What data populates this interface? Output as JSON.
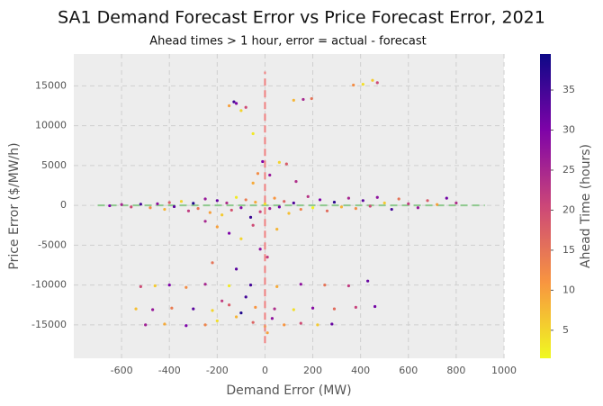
{
  "chart_data": {
    "type": "scatter",
    "title": "SA1 Demand Forecast Error vs Price Forecast Error, 2021",
    "subtitle": "Ahead times > 1 hour, error = actual - forecast",
    "x_label": "Demand Error (MW)",
    "y_label": "Price Error ($/MW/h)",
    "colorbar_label": "Ahead Time (hours)",
    "xlim": [
      -800,
      1000
    ],
    "xticks": [
      -600,
      -400,
      -200,
      0,
      200,
      400,
      600,
      800,
      1000
    ],
    "ylim": [
      -19200,
      19000
    ],
    "yticks": [
      -15000,
      -10000,
      -5000,
      0,
      5000,
      10000,
      15000
    ],
    "clim": [
      1.5,
      39.5
    ],
    "cticks": [
      5,
      10,
      15,
      20,
      25,
      30,
      35
    ],
    "colormap": [
      "#f0f921",
      "#f89540",
      "#cc4778",
      "#7e03a8",
      "#0d0887"
    ],
    "grid": true,
    "vline": {
      "x": 0,
      "y": [
        -17300,
        16800
      ],
      "color": "#f08080"
    },
    "hline": {
      "y": 0,
      "x": [
        -700,
        920
      ],
      "color": "#8fc98f"
    },
    "x": [
      -650,
      -600,
      -560,
      -520,
      -480,
      -450,
      -420,
      -400,
      -380,
      -350,
      -320,
      -300,
      -280,
      -250,
      -230,
      -200,
      -180,
      -160,
      -140,
      -120,
      -100,
      -80,
      -60,
      -40,
      -20,
      0,
      20,
      40,
      60,
      80,
      100,
      120,
      150,
      180,
      200,
      230,
      260,
      290,
      320,
      350,
      380,
      410,
      440,
      470,
      500,
      530,
      560,
      600,
      640,
      680,
      720,
      760,
      800,
      -250,
      -200,
      -150,
      -100,
      -50,
      -20,
      -220,
      -120,
      50,
      10,
      -30,
      20,
      60,
      90,
      -10,
      -50,
      130,
      -150,
      -120,
      -100,
      -80,
      -130,
      120,
      160,
      195,
      370,
      410,
      450,
      470,
      -50,
      -520,
      -460,
      -400,
      -330,
      -250,
      -150,
      -60,
      50,
      150,
      250,
      350,
      430,
      -540,
      -470,
      -390,
      -300,
      -220,
      -150,
      -100,
      -40,
      40,
      120,
      200,
      290,
      380,
      460,
      -500,
      -420,
      -330,
      -250,
      -200,
      -180,
      -120,
      -80,
      -50,
      0,
      30,
      80,
      150,
      220,
      280,
      10
    ],
    "values": [
      -50,
      100,
      -200,
      150,
      -300,
      200,
      -500,
      350,
      -150,
      500,
      -700,
      250,
      -400,
      800,
      -900,
      600,
      -1200,
      300,
      -600,
      1000,
      -300,
      700,
      -1500,
      400,
      -800,
      200,
      -400,
      900,
      -200,
      500,
      -1000,
      300,
      -500,
      1100,
      -300,
      700,
      -700,
      400,
      -200,
      900,
      -400,
      600,
      -100,
      1000,
      300,
      -500,
      800,
      200,
      -300,
      600,
      100,
      900,
      300,
      -2000,
      -2700,
      -3500,
      -4200,
      -2500,
      -5500,
      -7200,
      -8000,
      -3000,
      -6500,
      4000,
      3800,
      5400,
      5200,
      5500,
      2800,
      3000,
      12500,
      12800,
      11900,
      12300,
      13000,
      13200,
      13300,
      13400,
      15100,
      15200,
      15700,
      15400,
      9000,
      -10200,
      -10100,
      -10000,
      -10300,
      -9900,
      -10100,
      -10000,
      -10200,
      -9900,
      -10000,
      -10100,
      -9500,
      -13000,
      -13100,
      -12900,
      -13000,
      -13200,
      -12500,
      -13500,
      -12800,
      -13000,
      -13100,
      -12900,
      -13000,
      -12800,
      -12700,
      -15000,
      -14900,
      -15100,
      -15000,
      -14500,
      -12000,
      -14000,
      -11500,
      -14700,
      -15200,
      -14200,
      -15000,
      -14800,
      -15000,
      -14900,
      -16000
    ],
    "ahead_time": [
      30,
      25,
      20,
      35,
      12,
      28,
      8,
      18,
      33,
      5,
      22,
      38,
      15,
      27,
      10,
      32,
      6,
      24,
      19,
      3,
      29,
      14,
      36,
      9,
      21,
      4,
      26,
      11,
      31,
      17,
      7,
      34,
      13,
      23,
      2,
      30,
      16,
      37,
      8,
      25,
      12,
      33,
      20,
      28,
      6,
      35,
      15,
      22,
      27,
      18,
      10,
      31,
      24,
      25,
      10,
      30,
      5,
      20,
      28,
      15,
      33,
      8,
      22,
      12,
      27,
      5,
      18,
      30,
      9,
      24,
      10,
      30,
      5,
      20,
      35,
      8,
      25,
      15,
      12,
      4,
      6,
      20,
      3,
      20,
      6,
      30,
      12,
      25,
      3,
      35,
      9,
      28,
      15,
      22,
      32,
      7,
      27,
      14,
      33,
      5,
      18,
      38,
      11,
      24,
      4,
      29,
      16,
      21,
      31,
      26,
      9,
      30,
      13,
      4,
      22,
      8,
      35,
      17,
      3,
      28,
      11,
      20,
      6,
      32,
      10
    ]
  }
}
